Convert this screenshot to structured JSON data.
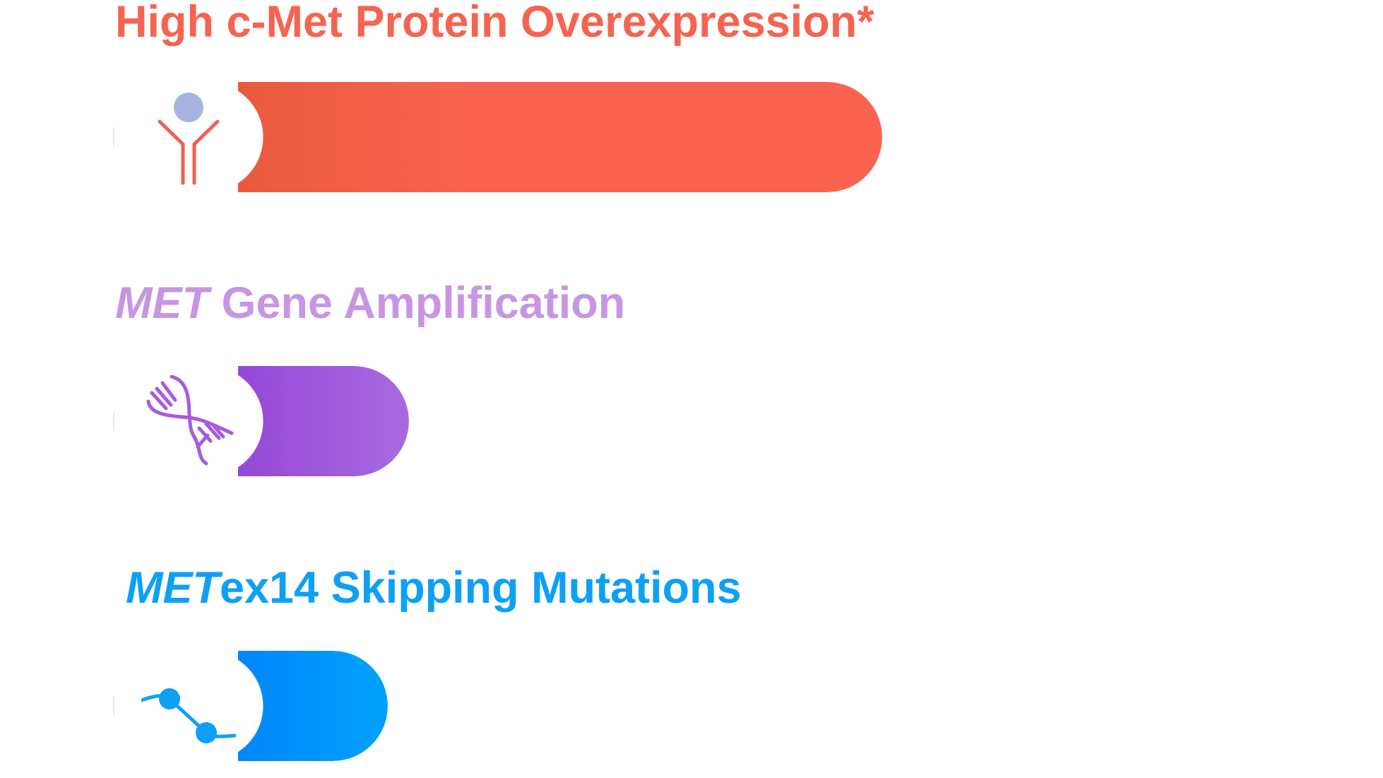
{
  "chart_data": {
    "type": "bar",
    "orientation": "horizontal",
    "categories": [
      {
        "prefix": "",
        "rest": "High c-Met Protein Overexpression*"
      },
      {
        "prefix": "MET",
        "rest": " Gene Amplification"
      },
      {
        "prefix": "MET",
        "rest": "ex14 Skipping Mutations"
      }
    ],
    "values": [
      100,
      26.5,
      23.2
    ],
    "icons": [
      "antibody-icon",
      "dna-icon",
      "exon-skipping-icon"
    ],
    "colors": {
      "protein_overexpression": [
        "#e85a3d",
        "#f9634f"
      ],
      "gene_amplification": [
        "#9448d6",
        "#a96ae0"
      ],
      "exon14_skipping": [
        "#0086fa",
        "#00a2fb"
      ],
      "protein_title": "#f56450",
      "amplification_title": "#c696e3",
      "skipping_title": "#0ea0f5",
      "antibody_head": "#a6b4e0"
    }
  }
}
